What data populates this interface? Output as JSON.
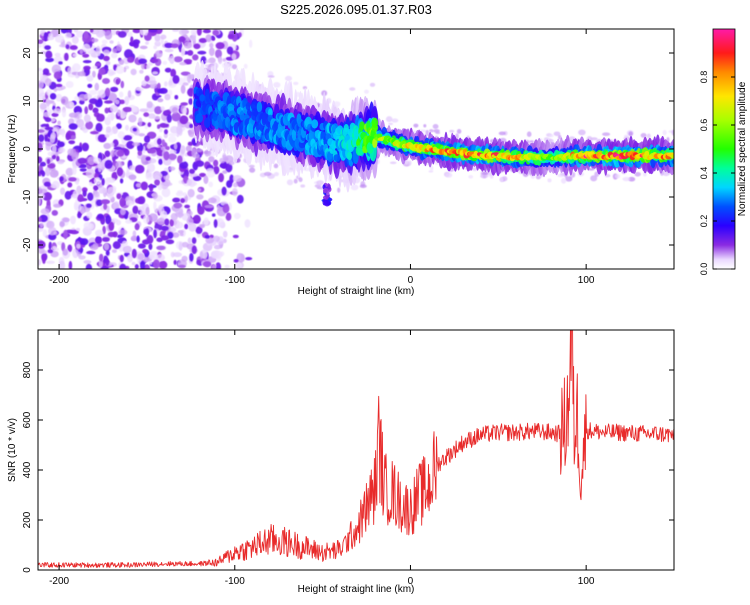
{
  "page": {
    "title": "S225.2026.095.01.37.R03"
  },
  "colors": {
    "snr_line": "#e82a2a",
    "axis": "#000000",
    "background": "#ffffff"
  },
  "colorbar": {
    "label": "Normalized spectral amplitude",
    "ticks": [
      "0.0",
      "0.2",
      "0.4",
      "0.6",
      "0.8"
    ],
    "tick_values": [
      0.0,
      0.2,
      0.4,
      0.6,
      0.8
    ],
    "range": [
      0,
      1
    ]
  },
  "chart_data": [
    {
      "type": "heatmap",
      "name": "spectrogram",
      "title": "S225.2026.095.01.37.R03",
      "xlabel": "Height of straight line (km)",
      "ylabel": "Frequency (Hz)",
      "xlim": [
        -212,
        150
      ],
      "ylim": [
        -25,
        25
      ],
      "xticks": [
        -200,
        -100,
        0,
        100
      ],
      "xtick_labels": [
        "-200",
        "-100",
        "0",
        "100"
      ],
      "yticks": [
        -20,
        -10,
        0,
        10,
        20
      ],
      "ytick_labels": [
        "-20",
        "-10",
        "0",
        "10",
        "20"
      ],
      "ridge": {
        "description_x": [
          -120,
          -100,
          -80,
          -60,
          -40,
          -20,
          0,
          20,
          40,
          60,
          80,
          100,
          120,
          150
        ],
        "frequency_hz": [
          9,
          7,
          5,
          3,
          1,
          2.5,
          0.5,
          -0.5,
          -1.3,
          -1.7,
          -1.8,
          -1.5,
          -1.5,
          -1.3
        ],
        "peak_amplitude": [
          0.25,
          0.3,
          0.3,
          0.3,
          0.35,
          0.6,
          0.75,
          0.85,
          0.9,
          0.8,
          0.6,
          0.9,
          0.92,
          0.8
        ]
      },
      "noise_region_x": [
        -212,
        -115
      ]
    },
    {
      "type": "line",
      "name": "snr",
      "xlabel": "Height of straight line (km)",
      "ylabel": "SNR (10 * v/v)",
      "xlim": [
        -212,
        150
      ],
      "ylim": [
        0,
        960
      ],
      "xticks": [
        -200,
        -100,
        0,
        100
      ],
      "xtick_labels": [
        "-200",
        "-100",
        "0",
        "100"
      ],
      "yticks": [
        0,
        200,
        400,
        600,
        800
      ],
      "ytick_labels": [
        "0",
        "200",
        "400",
        "600",
        "800"
      ],
      "series": [
        {
          "name": "SNR",
          "x": [
            -212,
            -200,
            -180,
            -160,
            -140,
            -120,
            -110,
            -100,
            -90,
            -80,
            -70,
            -60,
            -50,
            -40,
            -30,
            -25,
            -20,
            -18,
            -15,
            -10,
            -5,
            0,
            5,
            10,
            15,
            20,
            30,
            40,
            50,
            60,
            70,
            80,
            85,
            88,
            90,
            92,
            93,
            95,
            97,
            100,
            105,
            110,
            120,
            130,
            140,
            150
          ],
          "values": [
            20,
            20,
            20,
            20,
            25,
            25,
            30,
            70,
            90,
            120,
            110,
            90,
            70,
            80,
            170,
            250,
            330,
            520,
            330,
            310,
            260,
            240,
            300,
            330,
            420,
            450,
            510,
            540,
            550,
            550,
            555,
            550,
            545,
            580,
            680,
            940,
            560,
            620,
            380,
            560,
            555,
            550,
            550,
            545,
            545,
            540
          ]
        }
      ]
    }
  ]
}
